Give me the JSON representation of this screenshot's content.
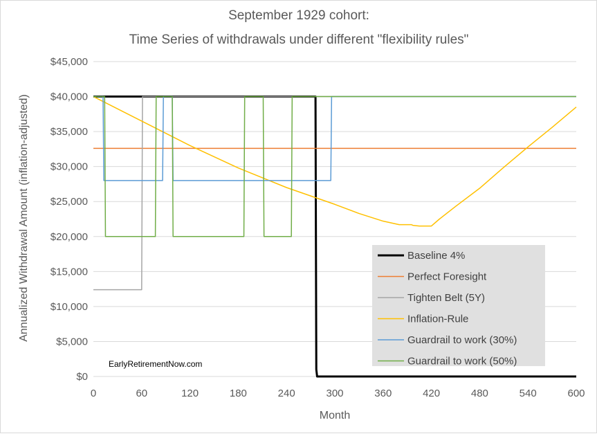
{
  "chart_data": {
    "type": "line",
    "title_line1": "September 1929 cohort:",
    "title_line2": "Time Series of withdrawals under different \"flexibility rules\"",
    "xlabel": "Month",
    "ylabel": "Annualized  Withdrawal Amount (inflation-adjusted)",
    "xlim": [
      0,
      600
    ],
    "ylim": [
      0,
      45000
    ],
    "x_ticks": [
      0,
      60,
      120,
      180,
      240,
      300,
      360,
      420,
      480,
      540,
      600
    ],
    "x_tick_labels": [
      "0",
      "60",
      "120",
      "180",
      "240",
      "300",
      "360",
      "420",
      "480",
      "540",
      "600"
    ],
    "y_ticks": [
      0,
      5000,
      10000,
      15000,
      20000,
      25000,
      30000,
      35000,
      40000,
      45000
    ],
    "y_tick_labels": [
      "$0",
      "$5,000",
      "$10,000",
      "$15,000",
      "$20,000",
      "$25,000",
      "$30,000",
      "$35,000",
      "$40,000",
      "$45,000"
    ],
    "grid": "horizontal",
    "legend_position": "bottom-right",
    "watermark": "EarlyRetirementNow.com",
    "series": [
      {
        "name": "Baseline 4%",
        "color": "#000000",
        "width": 3,
        "points": [
          [
            0,
            40000
          ],
          [
            276,
            40000
          ],
          [
            277,
            1000
          ],
          [
            278,
            0
          ],
          [
            600,
            0
          ]
        ]
      },
      {
        "name": "Perfect Foresight",
        "color": "#ed7d31",
        "width": 1.5,
        "points": [
          [
            0,
            32600
          ],
          [
            600,
            32600
          ]
        ]
      },
      {
        "name": "Tighten Belt (5Y)",
        "color": "#a5a5a5",
        "width": 1.5,
        "points": [
          [
            0,
            12400
          ],
          [
            60,
            12400
          ],
          [
            61,
            40000
          ],
          [
            600,
            40000
          ]
        ]
      },
      {
        "name": "Inflation-Rule",
        "color": "#ffc000",
        "width": 1.5,
        "points": [
          [
            0,
            40000
          ],
          [
            60,
            36500
          ],
          [
            120,
            33000
          ],
          [
            180,
            29800
          ],
          [
            240,
            27000
          ],
          [
            300,
            24600
          ],
          [
            330,
            23300
          ],
          [
            360,
            22200
          ],
          [
            380,
            21700
          ],
          [
            395,
            21700
          ],
          [
            397,
            21600
          ],
          [
            405,
            21500
          ],
          [
            420,
            21500
          ],
          [
            430,
            22500
          ],
          [
            450,
            24300
          ],
          [
            480,
            26900
          ],
          [
            510,
            29900
          ],
          [
            540,
            32800
          ],
          [
            570,
            35600
          ],
          [
            600,
            38500
          ]
        ]
      },
      {
        "name": "Guardrail to work (30%)",
        "color": "#5b9bd5",
        "width": 1.5,
        "points": [
          [
            0,
            40000
          ],
          [
            12,
            40000
          ],
          [
            13,
            28000
          ],
          [
            86,
            28000
          ],
          [
            87,
            40000
          ],
          [
            98,
            40000
          ],
          [
            99,
            28000
          ],
          [
            295,
            28000
          ],
          [
            296,
            40000
          ],
          [
            600,
            40000
          ]
        ]
      },
      {
        "name": "Guardrail to work (50%)",
        "color": "#70ad47",
        "width": 1.5,
        "points": [
          [
            0,
            40000
          ],
          [
            14,
            40000
          ],
          [
            15,
            20000
          ],
          [
            77,
            20000
          ],
          [
            78,
            40000
          ],
          [
            98,
            40000
          ],
          [
            99,
            20000
          ],
          [
            187,
            20000
          ],
          [
            188,
            40000
          ],
          [
            211,
            40000
          ],
          [
            212,
            20000
          ],
          [
            246,
            20000
          ],
          [
            247,
            40000
          ],
          [
            600,
            40000
          ]
        ]
      }
    ]
  }
}
